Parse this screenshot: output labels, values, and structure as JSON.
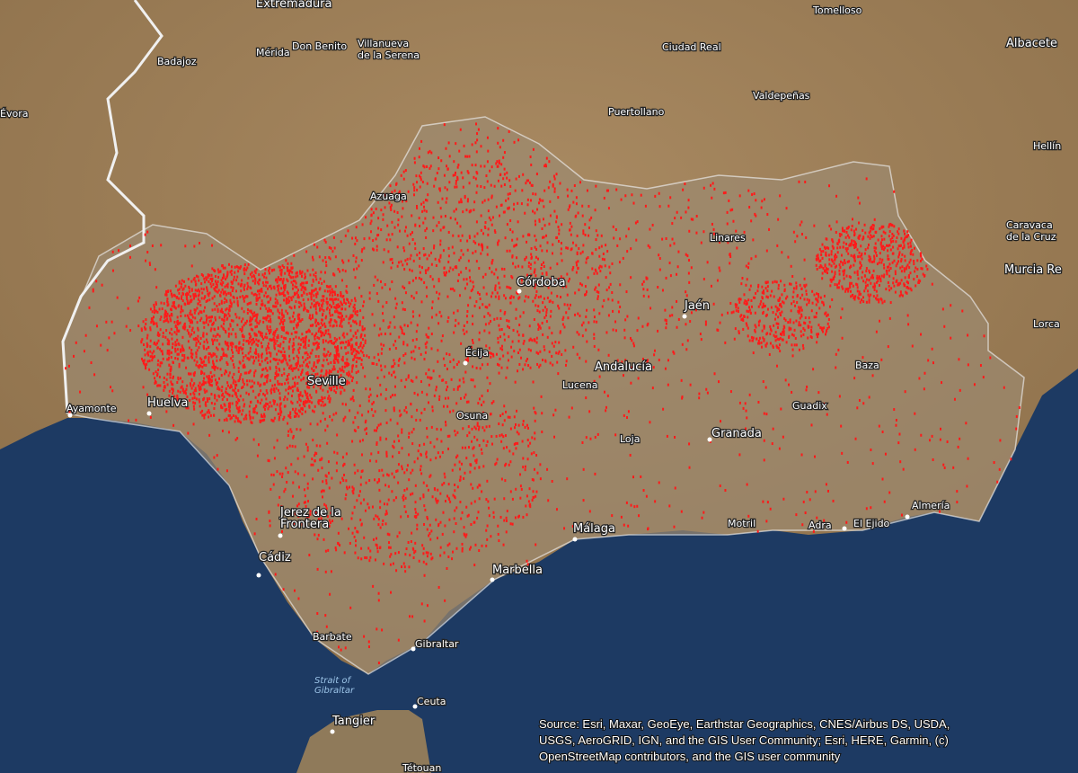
{
  "map": {
    "places": [
      {
        "lines": [
          "Extremadura"
        ]
      },
      {
        "lines": [
          "Tomelloso"
        ]
      },
      {
        "lines": [
          "Badajoz"
        ]
      },
      {
        "lines": [
          "Mérida"
        ]
      },
      {
        "lines": [
          "Don Benito"
        ]
      },
      {
        "lines": [
          "Villanueva",
          "de la Serena"
        ]
      },
      {
        "lines": [
          "Ciudad Real"
        ]
      },
      {
        "lines": [
          "Albacete"
        ]
      },
      {
        "lines": [
          "Évora"
        ]
      },
      {
        "lines": [
          "Puertollano"
        ]
      },
      {
        "lines": [
          "Valdepeñas"
        ]
      },
      {
        "lines": [
          "Hellín"
        ]
      },
      {
        "lines": [
          "Azuaga"
        ]
      },
      {
        "lines": [
          "Linares"
        ]
      },
      {
        "lines": [
          "Caravaca",
          "de la Cruz"
        ]
      },
      {
        "lines": [
          "Murcia Re"
        ]
      },
      {
        "lines": [
          "Córdoba"
        ]
      },
      {
        "lines": [
          "Jaén"
        ]
      },
      {
        "lines": [
          "Lorca"
        ]
      },
      {
        "lines": [
          "Écija"
        ]
      },
      {
        "lines": [
          "Andalucía"
        ]
      },
      {
        "lines": [
          "Seville"
        ]
      },
      {
        "lines": [
          "Baza"
        ]
      },
      {
        "lines": [
          "Lucena"
        ]
      },
      {
        "lines": [
          "Ayamonte"
        ]
      },
      {
        "lines": [
          "Huelva"
        ]
      },
      {
        "lines": [
          "Guadix"
        ]
      },
      {
        "lines": [
          "Osuna"
        ]
      },
      {
        "lines": [
          "Loja"
        ]
      },
      {
        "lines": [
          "Granada"
        ]
      },
      {
        "lines": [
          "Jerez de la",
          "Frontera"
        ]
      },
      {
        "lines": [
          "Motril"
        ]
      },
      {
        "lines": [
          "Adra"
        ]
      },
      {
        "lines": [
          "El Ejido"
        ]
      },
      {
        "lines": [
          "Almería"
        ]
      },
      {
        "lines": [
          "Málaga"
        ]
      },
      {
        "lines": [
          "Cádiz"
        ]
      },
      {
        "lines": [
          "Marbella"
        ]
      },
      {
        "lines": [
          "Barbate"
        ]
      },
      {
        "lines": [
          "Gibraltar"
        ]
      },
      {
        "lines": [
          "Strait of",
          "Gibraltar"
        ]
      },
      {
        "lines": [
          "Ceuta"
        ]
      },
      {
        "lines": [
          "Tangier"
        ]
      },
      {
        "lines": [
          "Tétouan"
        ]
      }
    ],
    "attribution": [
      "Source: Esri, Maxar, GeoEye, Earthstar Geographics, CNES/Airbus DS, USDA,",
      "USGS, AeroGRID, IGN, and the GIS User Community; Esri, HERE, Garmin, (c)",
      "OpenStreetMap contributors, and the GIS user community"
    ]
  }
}
